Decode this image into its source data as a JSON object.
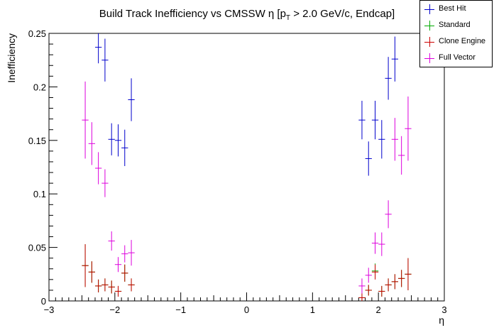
{
  "chart_data": {
    "type": "scatter",
    "title": "Build Track Inefficiency vs CMSSW η [p",
    "title_sub": "T",
    "title_tail": " > 2.0 GeV/c, Endcap]",
    "xlabel": "η",
    "ylabel": "Inefficiency",
    "xlim": [
      -3,
      3
    ],
    "ylim": [
      0,
      0.25
    ],
    "xticks": [
      -3,
      -2,
      -1,
      0,
      1,
      2,
      3
    ],
    "yticks": [
      0,
      0.05,
      0.1,
      0.15,
      0.2,
      0.25
    ],
    "ytick_labels": [
      "0",
      "0.05",
      "0.1",
      "0.15",
      "0.2",
      "0.25"
    ],
    "xtick_labels": [
      "−3",
      "−2",
      "−1",
      "0",
      "1",
      "2",
      "3"
    ],
    "grid": false,
    "legend_position": "top-right",
    "series": [
      {
        "name": "Best Hit",
        "color": "#0000cc",
        "points": [
          {
            "x": -2.25,
            "y": 0.237,
            "ey": 0.015,
            "ex": 0.05
          },
          {
            "x": -2.15,
            "y": 0.225,
            "ey": 0.02,
            "ex": 0.05
          },
          {
            "x": -2.05,
            "y": 0.151,
            "ey": 0.015,
            "ex": 0.05
          },
          {
            "x": -1.95,
            "y": 0.15,
            "ey": 0.015,
            "ex": 0.05
          },
          {
            "x": -1.85,
            "y": 0.143,
            "ey": 0.017,
            "ex": 0.05
          },
          {
            "x": -1.75,
            "y": 0.188,
            "ey": 0.02,
            "ex": 0.05
          },
          {
            "x": 1.75,
            "y": 0.169,
            "ey": 0.018,
            "ex": 0.05
          },
          {
            "x": 1.85,
            "y": 0.133,
            "ey": 0.016,
            "ex": 0.05
          },
          {
            "x": 1.95,
            "y": 0.169,
            "ey": 0.018,
            "ex": 0.05
          },
          {
            "x": 2.05,
            "y": 0.151,
            "ey": 0.018,
            "ex": 0.05
          },
          {
            "x": 2.15,
            "y": 0.208,
            "ey": 0.02,
            "ex": 0.05
          },
          {
            "x": 2.25,
            "y": 0.226,
            "ey": 0.021,
            "ex": 0.05
          }
        ]
      },
      {
        "name": "Standard",
        "color": "#00aa00",
        "points": [
          {
            "x": -2.45,
            "y": 0.033,
            "ey": 0.02,
            "ex": 0.05
          },
          {
            "x": -2.35,
            "y": 0.027,
            "ey": 0.01,
            "ex": 0.05
          },
          {
            "x": -2.25,
            "y": 0.014,
            "ey": 0.006,
            "ex": 0.05
          },
          {
            "x": -2.15,
            "y": 0.015,
            "ey": 0.006,
            "ex": 0.05
          },
          {
            "x": -2.05,
            "y": 0.013,
            "ey": 0.006,
            "ex": 0.05
          },
          {
            "x": -1.95,
            "y": 0.009,
            "ey": 0.005,
            "ex": 0.05
          },
          {
            "x": -1.85,
            "y": 0.026,
            "ey": 0.008,
            "ex": 0.05
          },
          {
            "x": -1.75,
            "y": 0.015,
            "ey": 0.006,
            "ex": 0.05
          },
          {
            "x": 1.75,
            "y": 0.003,
            "ey": 0.004,
            "ex": 0.05
          },
          {
            "x": 1.85,
            "y": 0.01,
            "ey": 0.005,
            "ex": 0.05
          },
          {
            "x": 1.95,
            "y": 0.028,
            "ey": 0.007,
            "ex": 0.05
          },
          {
            "x": 2.05,
            "y": 0.009,
            "ey": 0.005,
            "ex": 0.05
          },
          {
            "x": 2.15,
            "y": 0.015,
            "ey": 0.006,
            "ex": 0.05
          },
          {
            "x": 2.25,
            "y": 0.018,
            "ey": 0.007,
            "ex": 0.05
          },
          {
            "x": 2.35,
            "y": 0.021,
            "ey": 0.008,
            "ex": 0.05
          },
          {
            "x": 2.45,
            "y": 0.025,
            "ey": 0.015,
            "ex": 0.05
          }
        ]
      },
      {
        "name": "Clone Engine",
        "color": "#cc0000",
        "points": [
          {
            "x": -2.45,
            "y": 0.033,
            "ey": 0.02,
            "ex": 0.05
          },
          {
            "x": -2.35,
            "y": 0.027,
            "ey": 0.01,
            "ex": 0.05
          },
          {
            "x": -2.25,
            "y": 0.014,
            "ey": 0.006,
            "ex": 0.05
          },
          {
            "x": -2.15,
            "y": 0.015,
            "ey": 0.006,
            "ex": 0.05
          },
          {
            "x": -2.05,
            "y": 0.013,
            "ey": 0.006,
            "ex": 0.05
          },
          {
            "x": -1.95,
            "y": 0.009,
            "ey": 0.005,
            "ex": 0.05
          },
          {
            "x": -1.85,
            "y": 0.026,
            "ey": 0.008,
            "ex": 0.05
          },
          {
            "x": -1.75,
            "y": 0.015,
            "ey": 0.006,
            "ex": 0.05
          },
          {
            "x": 1.75,
            "y": 0.003,
            "ey": 0.004,
            "ex": 0.05
          },
          {
            "x": 1.85,
            "y": 0.01,
            "ey": 0.005,
            "ex": 0.05
          },
          {
            "x": 1.95,
            "y": 0.027,
            "ey": 0.007,
            "ex": 0.05
          },
          {
            "x": 2.05,
            "y": 0.009,
            "ey": 0.005,
            "ex": 0.05
          },
          {
            "x": 2.15,
            "y": 0.015,
            "ey": 0.006,
            "ex": 0.05
          },
          {
            "x": 2.25,
            "y": 0.018,
            "ey": 0.007,
            "ex": 0.05
          },
          {
            "x": 2.35,
            "y": 0.021,
            "ey": 0.008,
            "ex": 0.05
          },
          {
            "x": 2.45,
            "y": 0.025,
            "ey": 0.015,
            "ex": 0.05
          }
        ]
      },
      {
        "name": "Full Vector",
        "color": "#dd00dd",
        "points": [
          {
            "x": -2.45,
            "y": 0.169,
            "ey": 0.036,
            "ex": 0.05
          },
          {
            "x": -2.35,
            "y": 0.147,
            "ey": 0.02,
            "ex": 0.05
          },
          {
            "x": -2.25,
            "y": 0.124,
            "ey": 0.015,
            "ex": 0.05
          },
          {
            "x": -2.15,
            "y": 0.11,
            "ey": 0.013,
            "ex": 0.05
          },
          {
            "x": -2.05,
            "y": 0.056,
            "ey": 0.009,
            "ex": 0.05
          },
          {
            "x": -1.95,
            "y": 0.034,
            "ey": 0.007,
            "ex": 0.05
          },
          {
            "x": -1.85,
            "y": 0.044,
            "ey": 0.008,
            "ex": 0.05
          },
          {
            "x": -1.75,
            "y": 0.045,
            "ey": 0.012,
            "ex": 0.05
          },
          {
            "x": 1.75,
            "y": 0.014,
            "ey": 0.007,
            "ex": 0.05
          },
          {
            "x": 1.85,
            "y": 0.024,
            "ey": 0.007,
            "ex": 0.05
          },
          {
            "x": 1.95,
            "y": 0.054,
            "ey": 0.01,
            "ex": 0.05
          },
          {
            "x": 2.05,
            "y": 0.053,
            "ey": 0.011,
            "ex": 0.05
          },
          {
            "x": 2.15,
            "y": 0.081,
            "ey": 0.013,
            "ex": 0.05
          },
          {
            "x": 2.25,
            "y": 0.151,
            "ey": 0.02,
            "ex": 0.05
          },
          {
            "x": 2.35,
            "y": 0.136,
            "ey": 0.018,
            "ex": 0.05
          },
          {
            "x": 2.45,
            "y": 0.161,
            "ey": 0.03,
            "ex": 0.05
          }
        ]
      }
    ]
  }
}
